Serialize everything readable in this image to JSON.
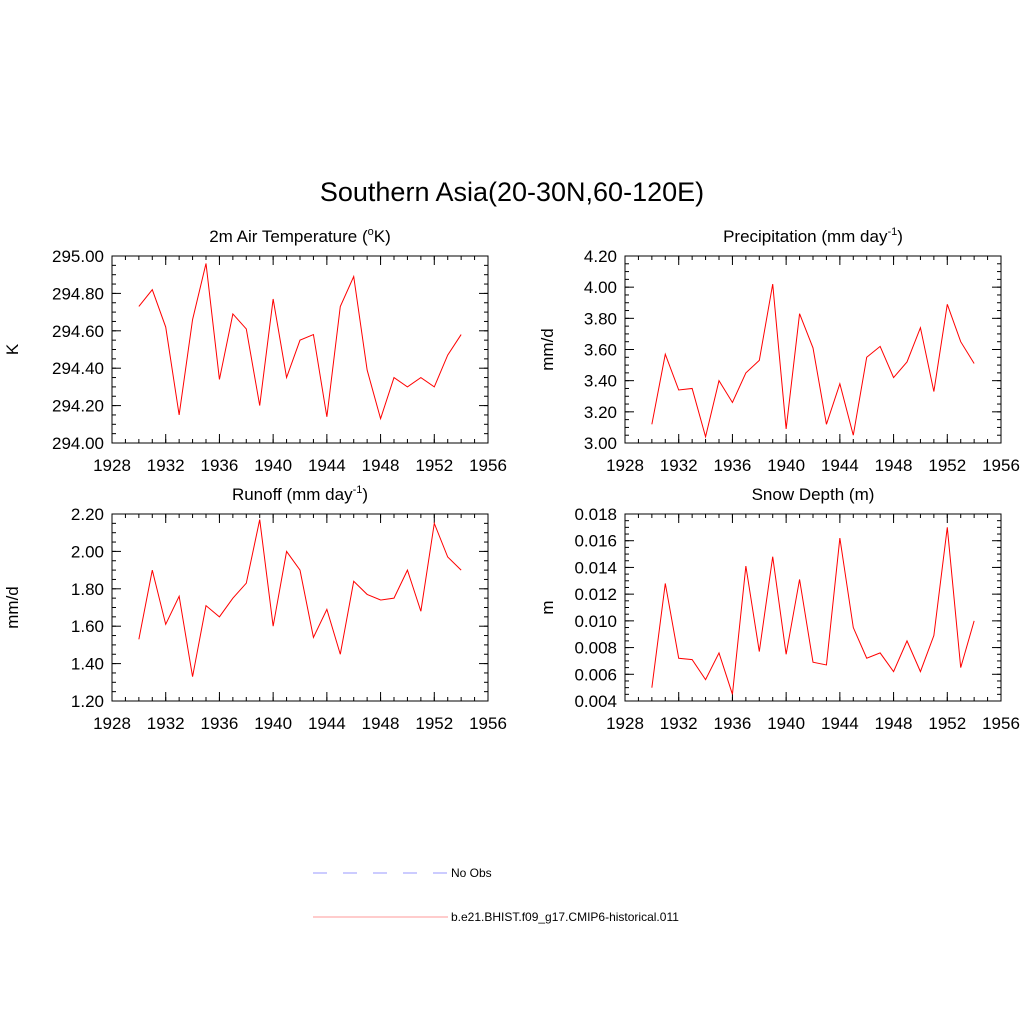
{
  "page_title": "Southern Asia(20-30N,60-120E)",
  "colors": {
    "model_line": "#ff0000",
    "obs_line": "#9999ff",
    "axis": "#000000"
  },
  "legend": {
    "items": [
      {
        "label": "No Obs",
        "style": "dashed",
        "color": "#9999ff"
      },
      {
        "label": "b.e21.BHIST.f09_g17.CMIP6-historical.011",
        "style": "solid",
        "color": "#ff0000"
      }
    ]
  },
  "chart_data": [
    {
      "type": "line",
      "title": "2m Air Temperature (",
      "title_sup": "o",
      "title_after": "K)",
      "ylabel": "K",
      "xlim": [
        1928,
        1956
      ],
      "ylim": [
        294.0,
        295.0
      ],
      "x_ticks": [
        1928,
        1932,
        1936,
        1940,
        1944,
        1948,
        1952,
        1956
      ],
      "y_ticks": [
        "294.00",
        "294.20",
        "294.40",
        "294.60",
        "294.80",
        "295.00"
      ],
      "x_minor_step": 1,
      "y_minor_step": 0.05,
      "x": [
        1930,
        1931,
        1932,
        1933,
        1934,
        1935,
        1936,
        1937,
        1938,
        1939,
        1940,
        1941,
        1942,
        1943,
        1944,
        1945,
        1946,
        1947,
        1948,
        1949,
        1950,
        1951,
        1952,
        1953,
        1954
      ],
      "series": [
        {
          "values": [
            294.73,
            294.82,
            294.62,
            294.15,
            294.66,
            294.96,
            294.34,
            294.69,
            294.61,
            294.2,
            294.77,
            294.35,
            294.55,
            294.58,
            294.14,
            294.73,
            294.89,
            294.39,
            294.13,
            294.35,
            294.3,
            294.35,
            294.3,
            294.47,
            294.58
          ]
        }
      ]
    },
    {
      "type": "line",
      "title": "Precipitation (mm day",
      "title_sup": "-1",
      "title_after": ")",
      "ylabel": "mm/d",
      "xlim": [
        1928,
        1956
      ],
      "ylim": [
        3.0,
        4.2
      ],
      "x_ticks": [
        1928,
        1932,
        1936,
        1940,
        1944,
        1948,
        1952,
        1956
      ],
      "y_ticks": [
        "3.00",
        "3.20",
        "3.40",
        "3.60",
        "3.80",
        "4.00",
        "4.20"
      ],
      "x_minor_step": 1,
      "y_minor_step": 0.05,
      "x": [
        1930,
        1931,
        1932,
        1933,
        1934,
        1935,
        1936,
        1937,
        1938,
        1939,
        1940,
        1941,
        1942,
        1943,
        1944,
        1945,
        1946,
        1947,
        1948,
        1949,
        1950,
        1951,
        1952,
        1953,
        1954
      ],
      "series": [
        {
          "values": [
            3.12,
            3.57,
            3.34,
            3.35,
            3.04,
            3.4,
            3.26,
            3.45,
            3.53,
            4.02,
            3.09,
            3.83,
            3.61,
            3.12,
            3.38,
            3.05,
            3.55,
            3.62,
            3.42,
            3.52,
            3.74,
            3.33,
            3.89,
            3.65,
            3.51
          ]
        }
      ]
    },
    {
      "type": "line",
      "title": "Runoff (mm day",
      "title_sup": "-1",
      "title_after": ")",
      "ylabel": "mm/d",
      "xlim": [
        1928,
        1956
      ],
      "ylim": [
        1.2,
        2.2
      ],
      "x_ticks": [
        1928,
        1932,
        1936,
        1940,
        1944,
        1948,
        1952,
        1956
      ],
      "y_ticks": [
        "1.20",
        "1.40",
        "1.60",
        "1.80",
        "2.00",
        "2.20"
      ],
      "x_minor_step": 1,
      "y_minor_step": 0.05,
      "x": [
        1930,
        1931,
        1932,
        1933,
        1934,
        1935,
        1936,
        1937,
        1938,
        1939,
        1940,
        1941,
        1942,
        1943,
        1944,
        1945,
        1946,
        1947,
        1948,
        1949,
        1950,
        1951,
        1952,
        1953,
        1954
      ],
      "series": [
        {
          "values": [
            1.53,
            1.9,
            1.61,
            1.76,
            1.33,
            1.71,
            1.65,
            1.75,
            1.83,
            2.17,
            1.6,
            2.0,
            1.9,
            1.54,
            1.69,
            1.45,
            1.84,
            1.77,
            1.74,
            1.75,
            1.9,
            1.68,
            2.15,
            1.97,
            1.9
          ]
        }
      ]
    },
    {
      "type": "line",
      "title": "Snow Depth (m)",
      "title_sup": "",
      "title_after": "",
      "ylabel": "m",
      "xlim": [
        1928,
        1956
      ],
      "ylim": [
        0.004,
        0.018
      ],
      "x_ticks": [
        1928,
        1932,
        1936,
        1940,
        1944,
        1948,
        1952,
        1956
      ],
      "y_ticks": [
        "0.004",
        "0.006",
        "0.008",
        "0.010",
        "0.012",
        "0.014",
        "0.016",
        "0.018"
      ],
      "x_minor_step": 1,
      "y_minor_step": 0.0005,
      "x": [
        1930,
        1931,
        1932,
        1933,
        1934,
        1935,
        1936,
        1937,
        1938,
        1939,
        1940,
        1941,
        1942,
        1943,
        1944,
        1945,
        1946,
        1947,
        1948,
        1949,
        1950,
        1951,
        1952,
        1953,
        1954
      ],
      "series": [
        {
          "values": [
            0.005,
            0.0128,
            0.0072,
            0.0071,
            0.0056,
            0.0076,
            0.0045,
            0.0141,
            0.0077,
            0.0148,
            0.0075,
            0.0131,
            0.0069,
            0.0067,
            0.0162,
            0.0095,
            0.0072,
            0.0076,
            0.0062,
            0.0085,
            0.0062,
            0.0089,
            0.017,
            0.0065,
            0.01
          ]
        }
      ]
    }
  ]
}
